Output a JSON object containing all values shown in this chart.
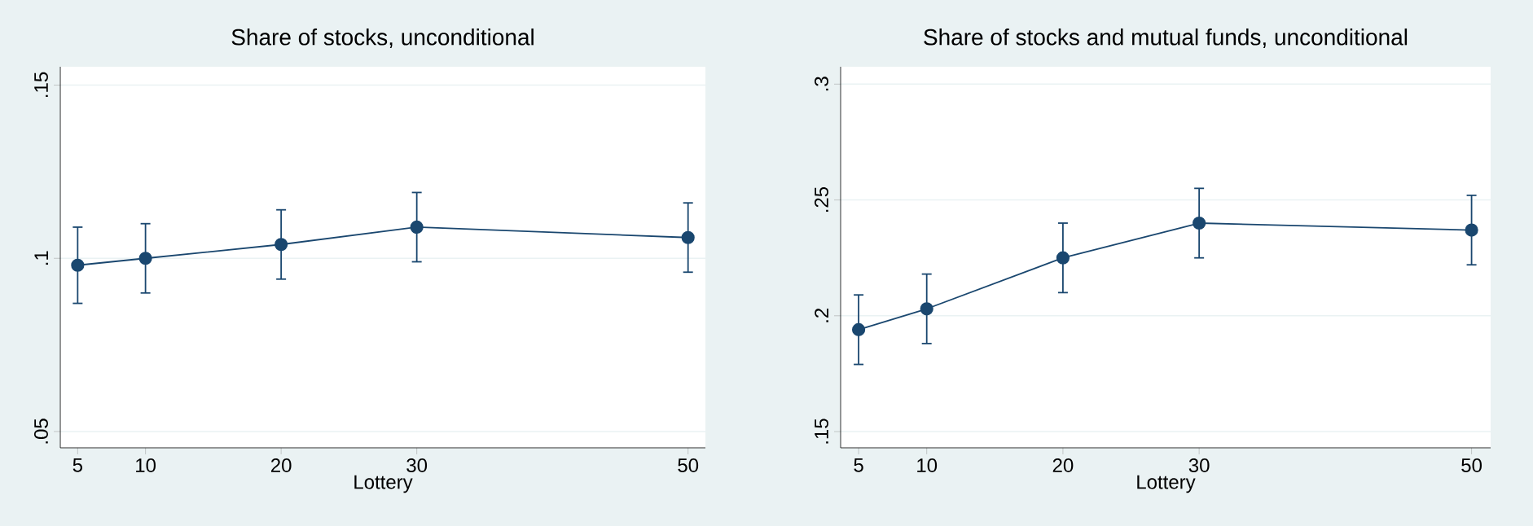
{
  "chart_data": [
    {
      "type": "line",
      "title": "Share of stocks, unconditional",
      "xlabel": "Lottery",
      "x": [
        5,
        10,
        20,
        30,
        50
      ],
      "values": [
        0.098,
        0.1,
        0.104,
        0.109,
        0.106
      ],
      "errors": [
        0.011,
        0.01,
        0.01,
        0.01,
        0.01
      ],
      "color": "#1a476f",
      "marker": "circle",
      "grid": "y",
      "xlim": [
        3.72,
        51.28
      ],
      "ylim": [
        0.0453,
        0.1553
      ],
      "xticks": [
        5,
        10,
        20,
        30,
        50
      ],
      "yticks": [
        {
          "value": 0.05,
          "label": ".05"
        },
        {
          "value": 0.1,
          "label": ".1"
        },
        {
          "value": 0.15,
          "label": ".15"
        }
      ]
    },
    {
      "type": "line",
      "title": "Share of stocks and mutual funds, unconditional",
      "xlabel": "Lottery",
      "x": [
        5,
        10,
        20,
        30,
        50
      ],
      "values": [
        0.194,
        0.203,
        0.225,
        0.24,
        0.237
      ],
      "errors": [
        0.015,
        0.015,
        0.015,
        0.015,
        0.015
      ],
      "color": "#1a476f",
      "marker": "circle",
      "grid": "y",
      "xlim": [
        3.68,
        51.4
      ],
      "ylim": [
        0.143,
        0.3075
      ],
      "xticks": [
        5,
        10,
        20,
        30,
        50
      ],
      "yticks": [
        {
          "value": 0.15,
          "label": ".15"
        },
        {
          "value": 0.2,
          "label": ".2"
        },
        {
          "value": 0.25,
          "label": ".25"
        },
        {
          "value": 0.3,
          "label": ".3"
        }
      ]
    }
  ]
}
